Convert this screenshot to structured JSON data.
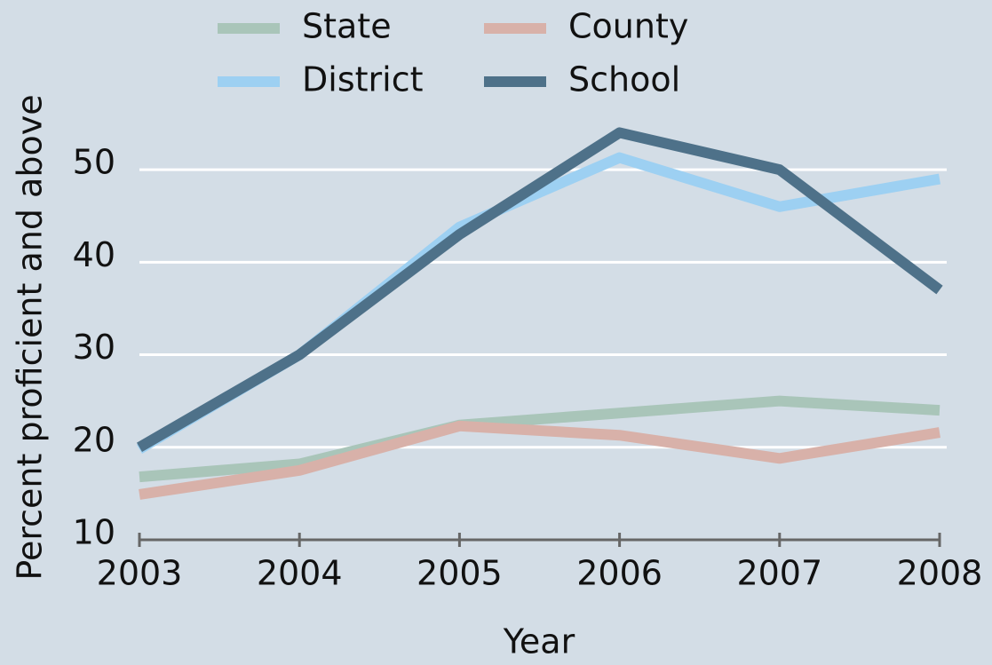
{
  "chart_data": {
    "type": "line",
    "xlabel": "Year",
    "ylabel": "Percent proficient and above",
    "x": [
      2003,
      2004,
      2005,
      2006,
      2007,
      2008
    ],
    "xlim": [
      2003,
      2008
    ],
    "xticks": [
      2003,
      2004,
      2005,
      2006,
      2007,
      2008
    ],
    "ylim": [
      10,
      55
    ],
    "yticks": [
      10,
      20,
      30,
      40,
      50
    ],
    "grid": true,
    "legend": "top",
    "series": [
      {
        "name": "State",
        "color": "#a9c5b9",
        "values": [
          16.8,
          18.2,
          22.4,
          23.7,
          25,
          24
        ]
      },
      {
        "name": "County",
        "color": "#d8b1a9",
        "values": [
          14.9,
          17.5,
          22.3,
          21.3,
          18.8,
          21.6
        ]
      },
      {
        "name": "District",
        "color": "#9dd0f2",
        "values": [
          19.8,
          30,
          43.8,
          51.3,
          46,
          49
        ]
      },
      {
        "name": "School",
        "color": "#4e7189",
        "values": [
          20,
          30,
          43,
          54,
          50,
          37
        ]
      }
    ]
  }
}
